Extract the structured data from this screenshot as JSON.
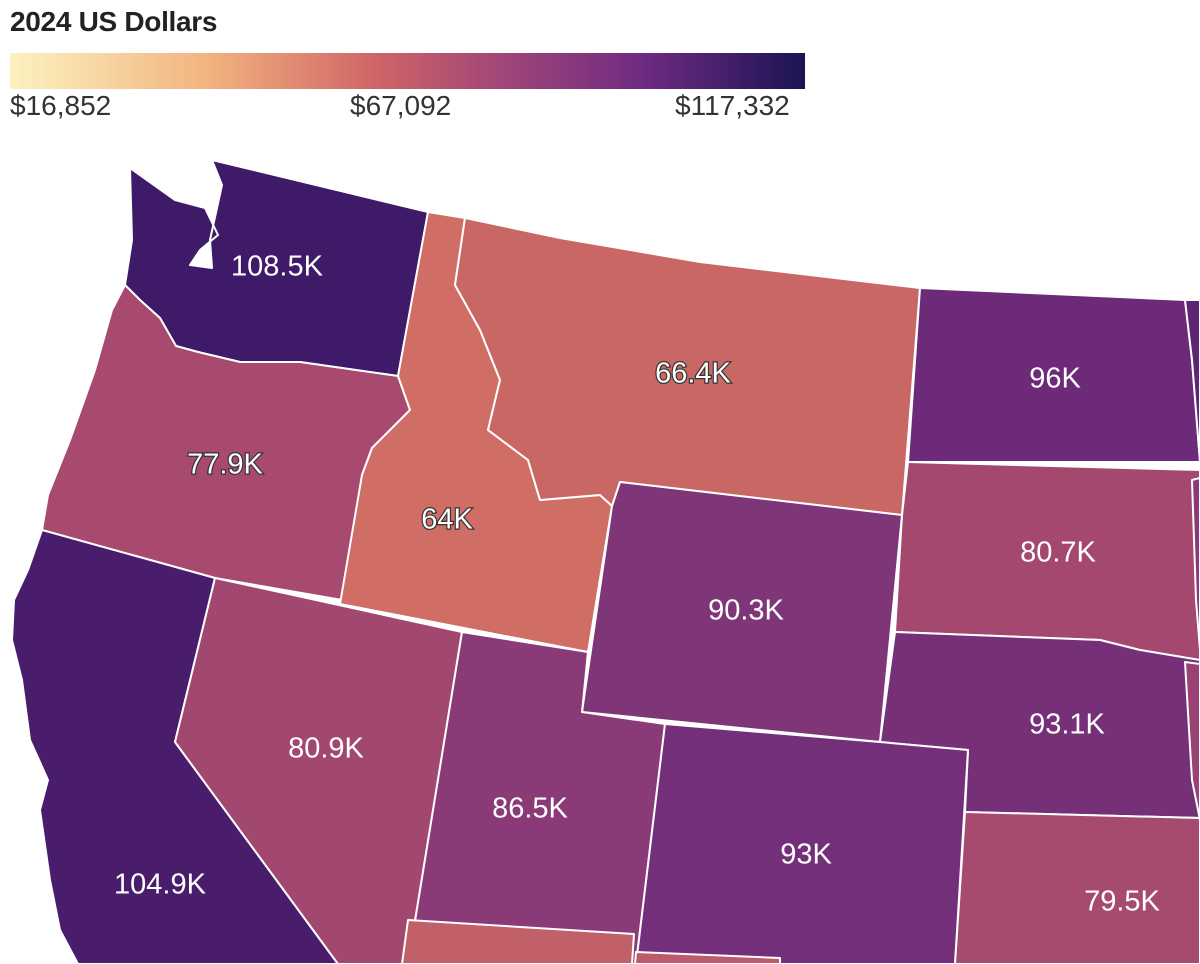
{
  "legend": {
    "title": "2024 US Dollars",
    "min_label": "$16,852",
    "mid_label": "$67,092",
    "max_label": "$117,332",
    "colors": [
      "#fcf2c0",
      "#f2b37f",
      "#cf6466",
      "#a04678",
      "#6e2a82",
      "#1a1452"
    ]
  },
  "states": [
    {
      "id": "washington",
      "label": "108.5K",
      "color": "#3f1a68"
    },
    {
      "id": "oregon",
      "label": "77.9K",
      "color": "#a8496f"
    },
    {
      "id": "idaho",
      "label": "64K",
      "color": "#d06d65"
    },
    {
      "id": "montana",
      "label": "66.4K",
      "color": "#c96765"
    },
    {
      "id": "north-dakota",
      "label": "96K",
      "color": "#6c2a78"
    },
    {
      "id": "south-dakota",
      "label": "80.7K",
      "color": "#a4486f"
    },
    {
      "id": "wyoming",
      "label": "90.3K",
      "color": "#7e3679"
    },
    {
      "id": "nebraska",
      "label": "93.1K",
      "color": "#763078"
    },
    {
      "id": "california",
      "label": "104.9K",
      "color": "#4a1d6c"
    },
    {
      "id": "nevada",
      "label": "80.9K",
      "color": "#a24770"
    },
    {
      "id": "utah",
      "label": "86.5K",
      "color": "#8b3a78"
    },
    {
      "id": "colorado",
      "label": "93K",
      "color": "#742f7a"
    },
    {
      "id": "kansas",
      "label": "79.5K",
      "color": "#a64a70"
    },
    {
      "id": "arizona",
      "label": "",
      "color": "#c2606a"
    },
    {
      "id": "new-mexico",
      "label": "",
      "color": "#bd5b6c"
    },
    {
      "id": "minnesota",
      "label": "",
      "color": "#5e2575"
    },
    {
      "id": "iowa",
      "label": "",
      "color": "#8a3a78"
    },
    {
      "id": "missouri",
      "label": "",
      "color": "#9a4274"
    }
  ]
}
